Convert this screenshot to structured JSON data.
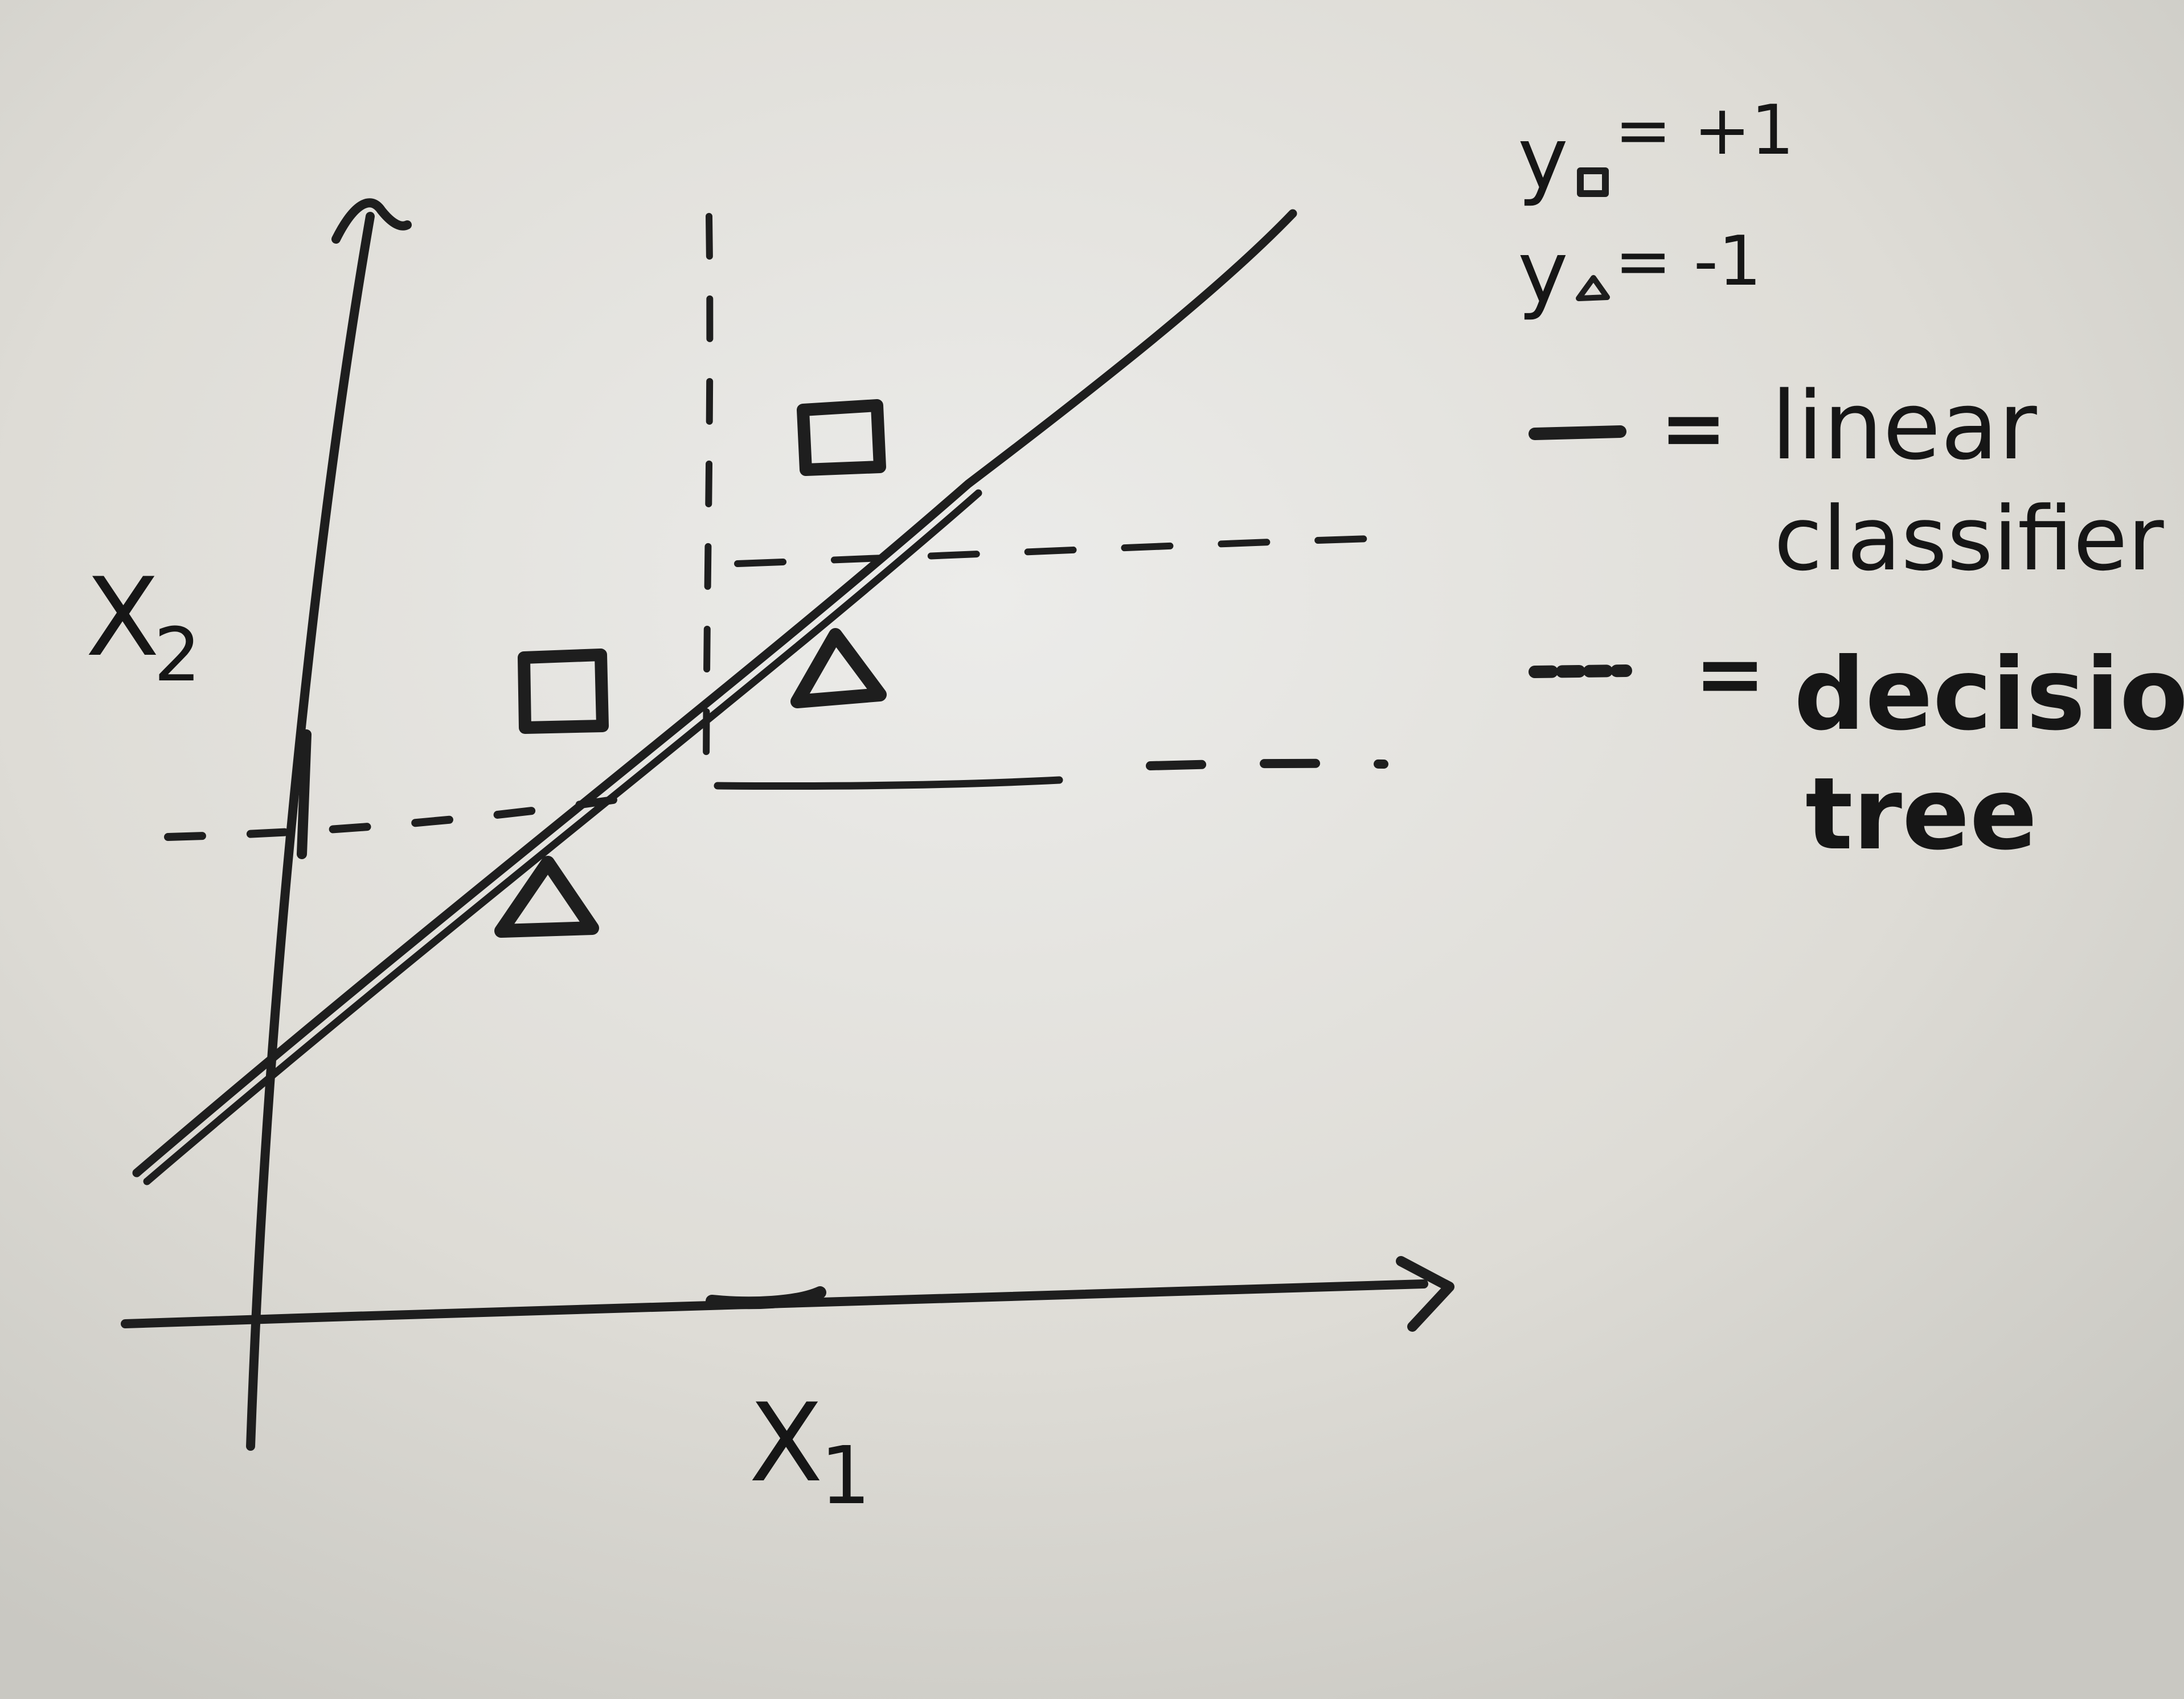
{
  "axes": {
    "x_label_letter": "X",
    "x_label_subscript": "1",
    "y_label_letter": "X",
    "y_label_subscript": "2"
  },
  "legend": {
    "square_label_prefix": "y",
    "square_label_value": "= +1",
    "triangle_label_prefix": "y",
    "triangle_label_value": "= -1",
    "linear_eq": "=",
    "linear_line1": "linear",
    "linear_line2": "classifier",
    "tree_eq": "=",
    "tree_line1": "decision",
    "tree_line2": "tree"
  },
  "colors": {
    "background": "#dcdcd6",
    "ink": "#1e1e1e"
  },
  "icons": {
    "square_marker": "square-icon",
    "triangle_marker": "triangle-icon"
  }
}
